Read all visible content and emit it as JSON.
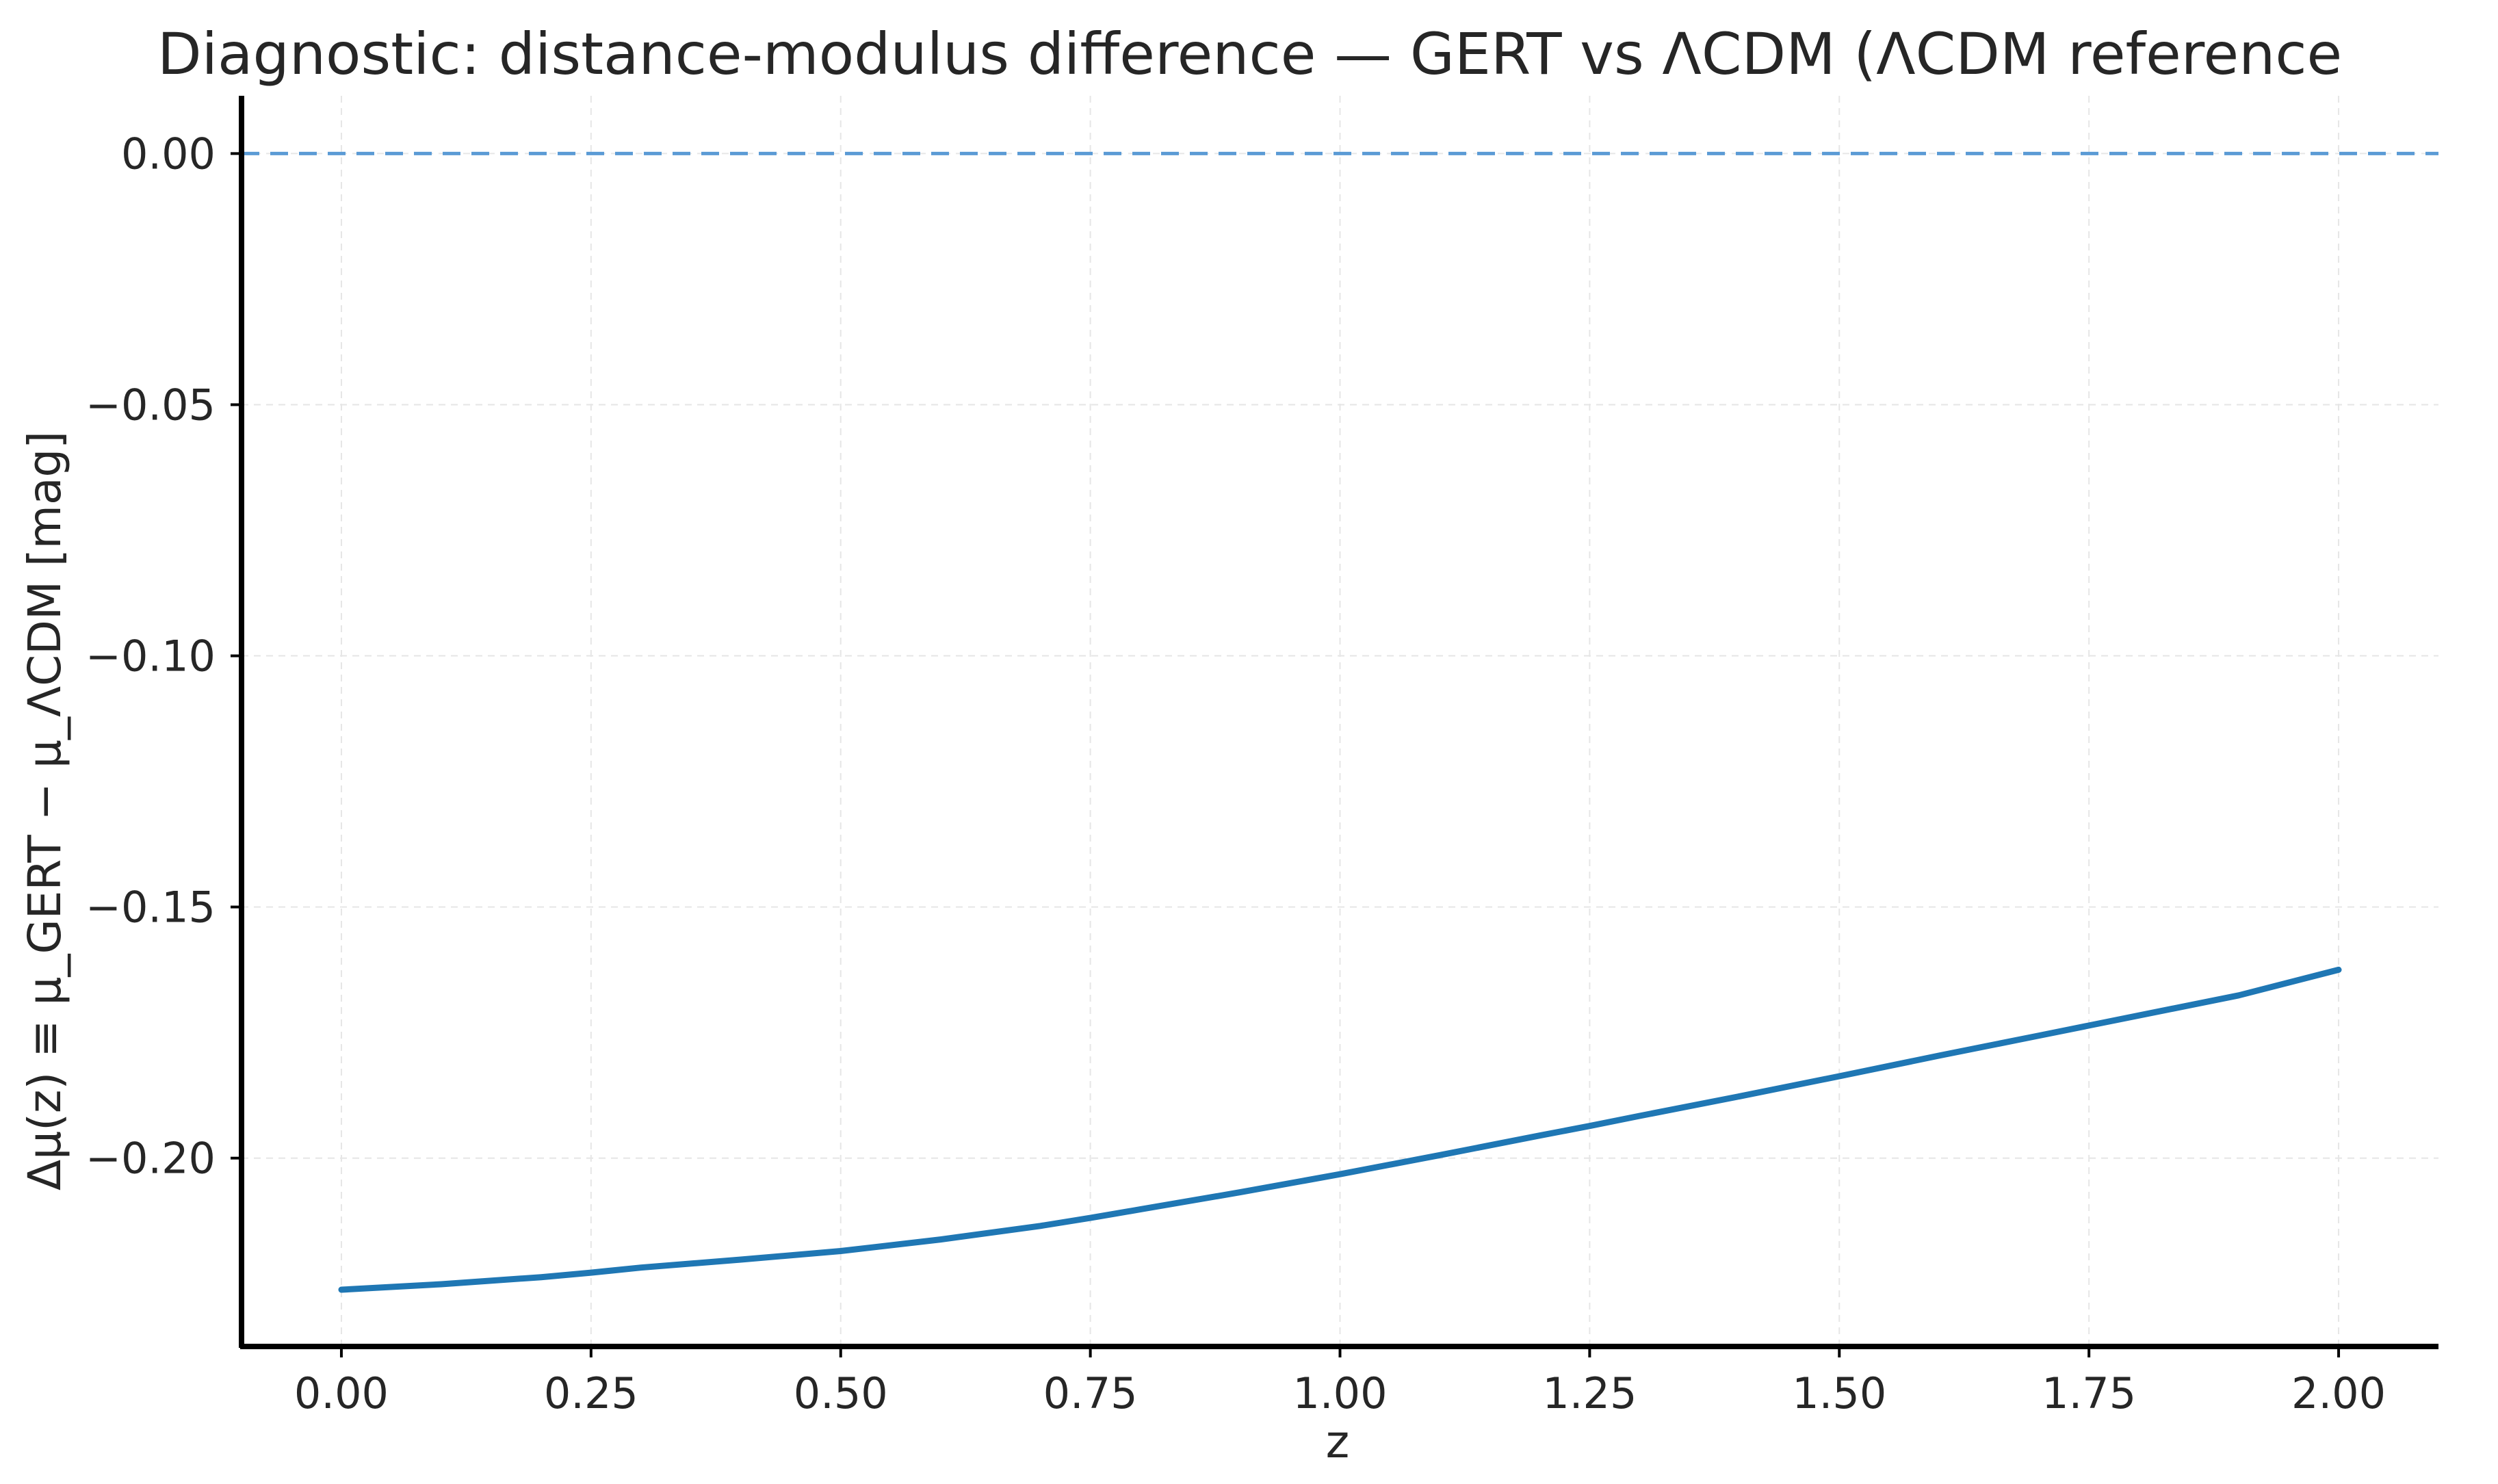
{
  "chart_data": {
    "type": "line",
    "title": "Diagnostic: distance-modulus difference — GERT vs ΛCDM (ΛCDM reference",
    "xlabel": "z",
    "ylabel": "Δμ(z) ≡ μ_GERT − μ_ΛCDM [mag]",
    "xlim": [
      -0.1,
      2.1
    ],
    "ylim": [
      -0.2375,
      0.0115
    ],
    "x_ticks": [
      0.0,
      0.25,
      0.5,
      0.75,
      1.0,
      1.25,
      1.5,
      1.75,
      2.0
    ],
    "x_tick_labels": [
      "0.00",
      "0.25",
      "0.50",
      "0.75",
      "1.00",
      "1.25",
      "1.50",
      "1.75",
      "2.00"
    ],
    "y_ticks": [
      0.0,
      -0.05,
      -0.1,
      -0.15,
      -0.2
    ],
    "y_tick_labels": [
      "0.00",
      "−0.05",
      "−0.10",
      "−0.15",
      "−0.20"
    ],
    "grid": true,
    "reference_line": {
      "y": 0.0,
      "style": "dashed",
      "color": "#5b9bd5"
    },
    "series": [
      {
        "color": "#1f77b4",
        "x": [
          0.0,
          0.1,
          0.2,
          0.25,
          0.3,
          0.4,
          0.5,
          0.6,
          0.7,
          0.75,
          0.8,
          0.9,
          1.0,
          1.1,
          1.2,
          1.25,
          1.3,
          1.4,
          1.5,
          1.6,
          1.7,
          1.75,
          1.8,
          1.9,
          2.0
        ],
        "y": [
          -0.2262,
          -0.2251,
          -0.2237,
          -0.2228,
          -0.2218,
          -0.2202,
          -0.2185,
          -0.2162,
          -0.2135,
          -0.2119,
          -0.2102,
          -0.2068,
          -0.2032,
          -0.1994,
          -0.1955,
          -0.1936,
          -0.1916,
          -0.1877,
          -0.1837,
          -0.1796,
          -0.1756,
          -0.1736,
          -0.1716,
          -0.1676,
          -0.1625
        ]
      }
    ]
  }
}
